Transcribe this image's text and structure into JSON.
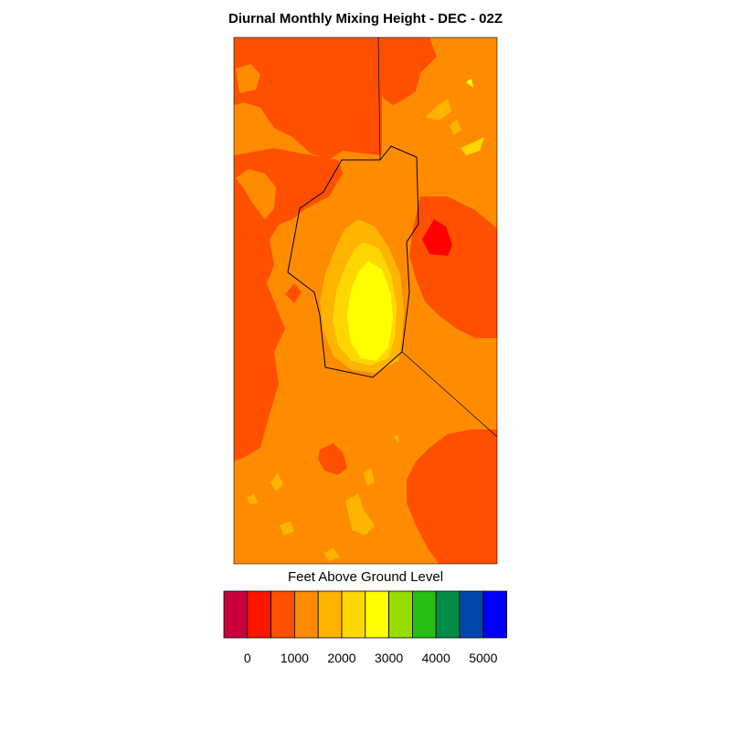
{
  "title": "Diurnal Monthly Mixing Height - DEC - 02Z",
  "legend": {
    "title": "Feet Above Ground Level",
    "colors": [
      "#C8003C",
      "#FF1400",
      "#FF5000",
      "#FF8C00",
      "#FFB400",
      "#FFD700",
      "#FFFF00",
      "#96DC00",
      "#28BE14",
      "#008C46",
      "#0046AA",
      "#0000FF"
    ],
    "tick_labels": [
      "0",
      "1000",
      "2000",
      "3000",
      "4000",
      "5000"
    ]
  },
  "map_colors": {
    "deep_red": "#FF0000",
    "red_orange": "#FF5000",
    "orange": "#FF8C00",
    "amber": "#FFB400",
    "gold": "#FFD700",
    "yellow": "#FFFF00"
  }
}
